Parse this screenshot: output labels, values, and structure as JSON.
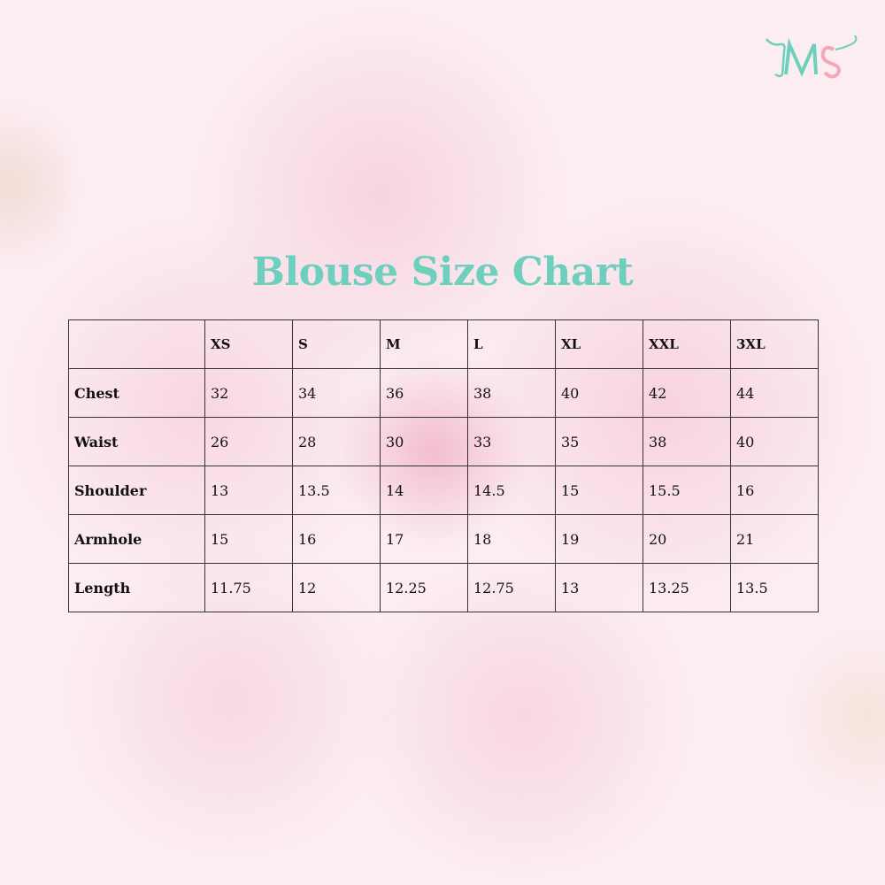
{
  "logo": {
    "text": "MS",
    "colors": {
      "m": "#6fcfbd",
      "s": "#f2a9b5"
    }
  },
  "title": "Blouse Size Chart",
  "colors": {
    "title": "#6fcfbd",
    "background": "#fcedf3",
    "border": "#333333"
  },
  "table": {
    "headers": [
      "",
      "XS",
      "S",
      "M",
      "L",
      "XL",
      "XXL",
      "3XL"
    ],
    "rows": [
      {
        "label": "Chest",
        "values": [
          "32",
          "34",
          "36",
          "38",
          "40",
          "42",
          "44"
        ]
      },
      {
        "label": "Waist",
        "values": [
          "26",
          "28",
          "30",
          "33",
          "35",
          "38",
          "40"
        ]
      },
      {
        "label": "Shoulder",
        "values": [
          "13",
          "13.5",
          "14",
          "14.5",
          "15",
          "15.5",
          "16"
        ]
      },
      {
        "label": "Armhole",
        "values": [
          "15",
          "16",
          "17",
          "18",
          "19",
          "20",
          "21"
        ]
      },
      {
        "label": "Length",
        "values": [
          "11.75",
          "12",
          "12.25",
          "12.75",
          "13",
          "13.25",
          "13.5"
        ]
      }
    ]
  }
}
